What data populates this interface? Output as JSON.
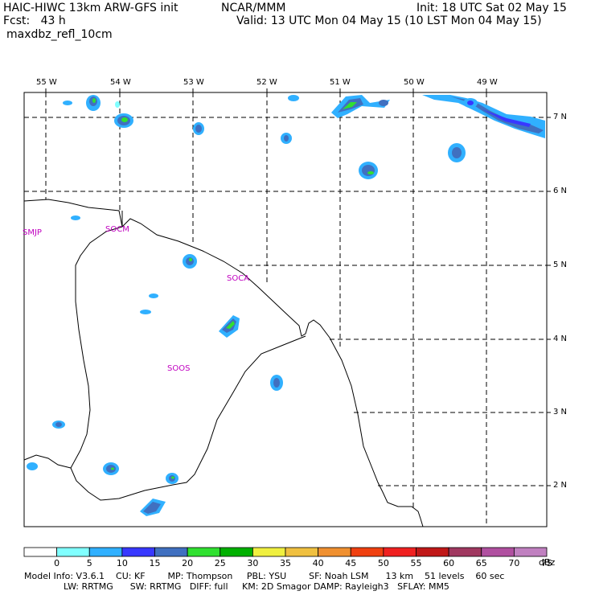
{
  "header": {
    "title_left": "HAIC-HIWC 13km ARW-GFS init",
    "title_center": "NCAR/MMM",
    "init": "Init: 18 UTC Sat 02 May 15",
    "fcst": "Fcst:   43 h",
    "valid": "Valid: 13 UTC Mon 04 May 15 (10 LST Mon 04 May 15)",
    "field": "maxdbz_refl_10cm"
  },
  "axes": {
    "lon_labels": [
      "55 W",
      "54 W",
      "53 W",
      "52 W",
      "51 W",
      "50 W",
      "49 W"
    ],
    "lat_labels": [
      "7 N",
      "6 N",
      "5 N",
      "4 N",
      "3 N",
      "2 N"
    ]
  },
  "map_labels": [
    "SMJP",
    "SOCM",
    "SOCA",
    "SOOS"
  ],
  "colorbar": {
    "values": [
      "0",
      "5",
      "10",
      "15",
      "20",
      "25",
      "30",
      "35",
      "40",
      "45",
      "50",
      "55",
      "60",
      "65",
      "70",
      "75"
    ],
    "unit": "dBz",
    "colors": [
      "#ffffff",
      "#80ffff",
      "#30b0ff",
      "#3838ff",
      "#4070c0",
      "#30e030",
      "#00b000",
      "#f0f040",
      "#f0c040",
      "#f09030",
      "#f04010",
      "#f02020",
      "#c01818",
      "#a03860",
      "#b050a0",
      "#c080c0"
    ]
  },
  "footer": {
    "line1": "Model Info: V3.6.1    CU: KF        MP: Thompson     PBL: YSU        SF: Noah LSM      13 km    51 levels    60 sec",
    "line2": "              LW: RRTMG      SW: RRTMG   DIFF: full     KM: 2D Smagor DAMP: Rayleigh3   SFLAY: MM5"
  }
}
